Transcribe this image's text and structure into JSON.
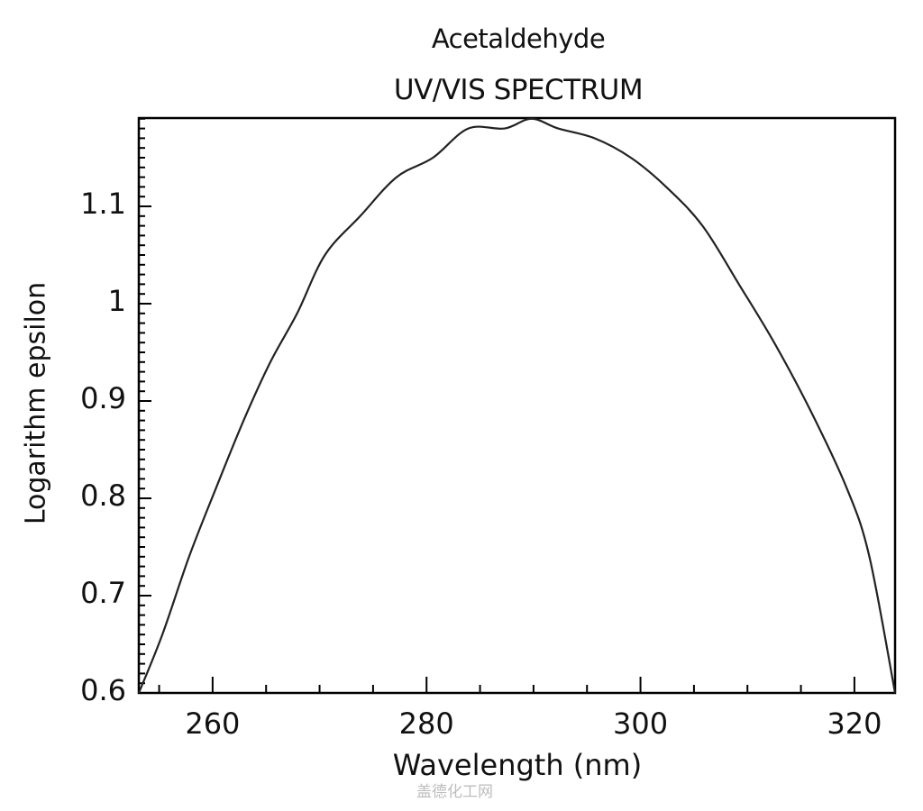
{
  "chart_data": {
    "type": "line",
    "title": "Acetaldehyde",
    "subtitle": "UV/VIS SPECTRUM",
    "xlabel": "Wavelength (nm)",
    "ylabel": "Logarithm epsilon",
    "xlim": [
      253,
      324
    ],
    "ylim": [
      0.6,
      1.19
    ],
    "x_ticks": [
      260,
      280,
      300,
      320
    ],
    "y_ticks": [
      0.6,
      0.7,
      0.8,
      0.9,
      1,
      1.1
    ],
    "x_tick_labels": [
      "260",
      "280",
      "300",
      "320"
    ],
    "y_tick_labels": [
      "0.6",
      "0.7",
      "0.8",
      "0.9",
      "1",
      "1.1"
    ],
    "grid": false,
    "legend": null,
    "series": [
      {
        "name": "Acetaldehyde",
        "x": [
          253.1,
          255.3,
          257.8,
          260.3,
          262.9,
          265.4,
          267.9,
          270.5,
          273.8,
          277.2,
          280.6,
          283.9,
          287.3,
          289.8,
          292.3,
          295.7,
          299.1,
          302.4,
          305.8,
          309.2,
          312.5,
          315.9,
          319.3,
          321.4,
          323.8
        ],
        "y": [
          0.6,
          0.66,
          0.74,
          0.81,
          0.88,
          0.94,
          0.99,
          1.05,
          1.09,
          1.13,
          1.15,
          1.18,
          1.18,
          1.19,
          1.18,
          1.17,
          1.15,
          1.12,
          1.08,
          1.02,
          0.96,
          0.89,
          0.81,
          0.74,
          0.6
        ]
      }
    ]
  },
  "labels": {
    "title": "Acetaldehyde",
    "subtitle": "UV/VIS SPECTRUM",
    "xlabel": "Wavelength (nm)",
    "ylabel": "Logarithm epsilon",
    "watermark": "盖德化工网"
  }
}
